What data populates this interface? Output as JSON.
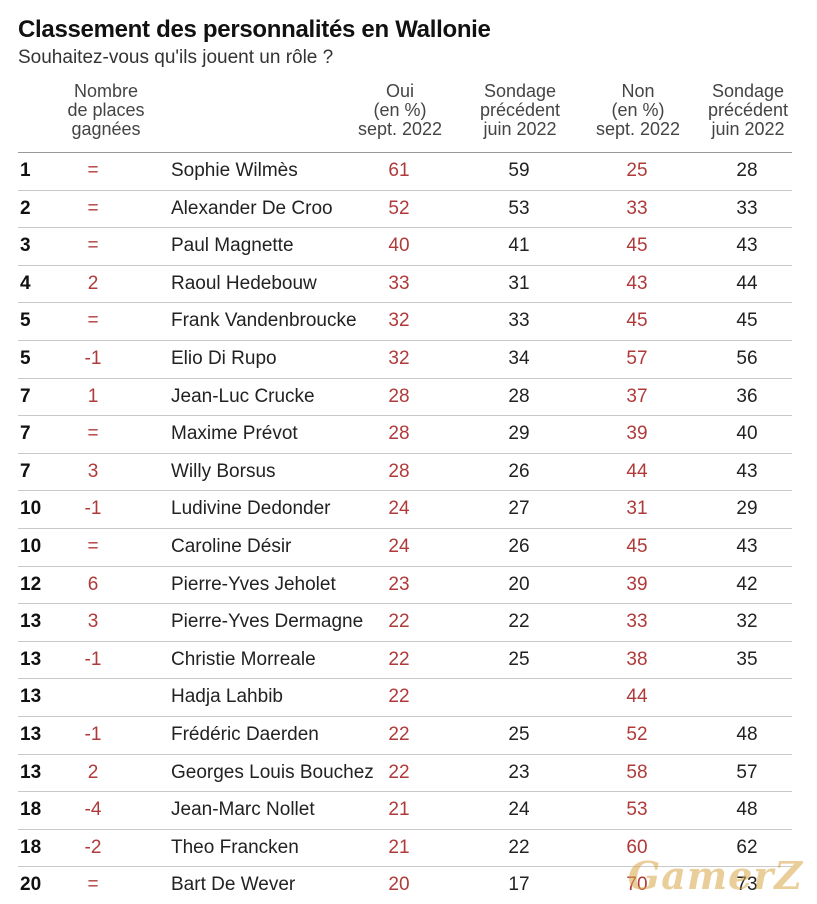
{
  "title": "Classement des personnalités en Wallonie",
  "subtitle": "Souhaitez-vous qu'ils jouent un rôle ?",
  "headers": {
    "places": [
      "Nombre",
      "de places",
      "gagnées"
    ],
    "oui": [
      "Oui",
      "(en %)",
      "sept. 2022"
    ],
    "prev_oui": [
      "Sondage",
      "précédent",
      "juin 2022"
    ],
    "non": [
      "Non",
      "(en %)",
      "sept. 2022"
    ],
    "prev_non": [
      "Sondage",
      "précédent",
      "juin 2022"
    ]
  },
  "watermark": "GamerZ",
  "colors": {
    "accent": "#b03a3a",
    "text": "#222222",
    "rule": "#c9c9c9"
  },
  "chart_data": {
    "type": "table",
    "title": "Classement des personnalités en Wallonie",
    "subtitle": "Souhaitez-vous qu'ils jouent un rôle ?",
    "columns": [
      "",
      "Nombre de places gagnées",
      "",
      "Oui (en %) sept. 2022",
      "Sondage précédent juin 2022",
      "Non (en %) sept. 2022",
      "Sondage précédent juin 2022"
    ],
    "rows": [
      {
        "rank": "1",
        "places": "=",
        "name": "Sophie Wilmès",
        "oui": "61",
        "prev_oui": "59",
        "non": "25",
        "prev_non": "28"
      },
      {
        "rank": "2",
        "places": "=",
        "name": "Alexander De Croo",
        "oui": "52",
        "prev_oui": "53",
        "non": "33",
        "prev_non": "33"
      },
      {
        "rank": "3",
        "places": "=",
        "name": "Paul Magnette",
        "oui": "40",
        "prev_oui": "41",
        "non": "45",
        "prev_non": "43"
      },
      {
        "rank": "4",
        "places": "2",
        "name": "Raoul Hedebouw",
        "oui": "33",
        "prev_oui": "31",
        "non": "43",
        "prev_non": "44"
      },
      {
        "rank": "5",
        "places": "=",
        "name": "Frank Vandenbroucke",
        "oui": "32",
        "prev_oui": "33",
        "non": "45",
        "prev_non": "45"
      },
      {
        "rank": "5",
        "places": "-1",
        "name": "Elio Di Rupo",
        "oui": "32",
        "prev_oui": "34",
        "non": "57",
        "prev_non": "56"
      },
      {
        "rank": "7",
        "places": "1",
        "name": "Jean-Luc Crucke",
        "oui": "28",
        "prev_oui": "28",
        "non": "37",
        "prev_non": "36"
      },
      {
        "rank": "7",
        "places": "=",
        "name": "Maxime Prévot",
        "oui": "28",
        "prev_oui": "29",
        "non": "39",
        "prev_non": "40"
      },
      {
        "rank": "7",
        "places": "3",
        "name": "Willy Borsus",
        "oui": "28",
        "prev_oui": "26",
        "non": "44",
        "prev_non": "43"
      },
      {
        "rank": "10",
        "places": "-1",
        "name": "Ludivine Dedonder",
        "oui": "24",
        "prev_oui": "27",
        "non": "31",
        "prev_non": "29"
      },
      {
        "rank": "10",
        "places": "=",
        "name": "Caroline Désir",
        "oui": "24",
        "prev_oui": "26",
        "non": "45",
        "prev_non": "43"
      },
      {
        "rank": "12",
        "places": "6",
        "name": "Pierre-Yves Jeholet",
        "oui": "23",
        "prev_oui": "20",
        "non": "39",
        "prev_non": "42"
      },
      {
        "rank": "13",
        "places": "3",
        "name": "Pierre-Yves Dermagne",
        "oui": "22",
        "prev_oui": "22",
        "non": "33",
        "prev_non": "32"
      },
      {
        "rank": "13",
        "places": "-1",
        "name": "Christie Morreale",
        "oui": "22",
        "prev_oui": "25",
        "non": "38",
        "prev_non": "35"
      },
      {
        "rank": "13",
        "places": "",
        "name": "Hadja Lahbib",
        "oui": "22",
        "prev_oui": "",
        "non": "44",
        "prev_non": ""
      },
      {
        "rank": "13",
        "places": "-1",
        "name": "Frédéric Daerden",
        "oui": "22",
        "prev_oui": "25",
        "non": "52",
        "prev_non": "48"
      },
      {
        "rank": "13",
        "places": "2",
        "name": "Georges Louis Bouchez",
        "oui": "22",
        "prev_oui": "23",
        "non": "58",
        "prev_non": "57"
      },
      {
        "rank": "18",
        "places": "-4",
        "name": "Jean-Marc Nollet",
        "oui": "21",
        "prev_oui": "24",
        "non": "53",
        "prev_non": "48"
      },
      {
        "rank": "18",
        "places": "-2",
        "name": "Theo Francken",
        "oui": "21",
        "prev_oui": "22",
        "non": "60",
        "prev_non": "62"
      },
      {
        "rank": "20",
        "places": "=",
        "name": "Bart De Wever",
        "oui": "20",
        "prev_oui": "17",
        "non": "70",
        "prev_non": "73"
      }
    ]
  }
}
